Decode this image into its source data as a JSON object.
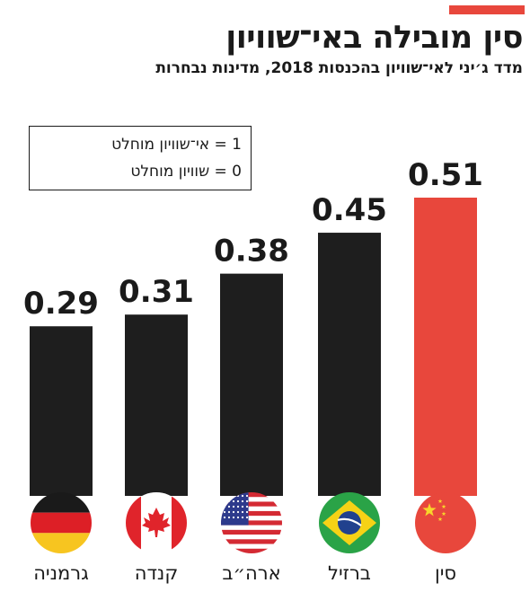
{
  "title": "סין מובילה באי־שוויון",
  "subtitle": "מדד ג׳יני לאי־שוויון בהכנסות 2018, מדינות נבחרות",
  "legend": {
    "one": "1 = אי־שוויון מוחלט",
    "zero": "0 = שוויון מוחלט"
  },
  "colors": {
    "bar": "#1e1e1e",
    "highlight": "#e8473c",
    "text": "#1a1a1a"
  },
  "chart_data": {
    "type": "bar",
    "categories": [
      "גרמניה",
      "קנדה",
      "ארה״ב",
      "ברזיל",
      "סין"
    ],
    "values": [
      0.29,
      0.31,
      0.38,
      0.45,
      0.51
    ],
    "value_labels": [
      "0.29",
      "0.31",
      "0.38",
      "0.45",
      "0.51"
    ],
    "flags": [
      "germany-flag-icon",
      "canada-flag-icon",
      "usa-flag-icon",
      "brazil-flag-icon",
      "china-flag-icon"
    ],
    "highlight_index": 4,
    "title": "סין מובילה באי־שוויון",
    "xlabel": "",
    "ylabel": "",
    "ylim": [
      0,
      0.51
    ],
    "grid": false,
    "legend": "top-left"
  }
}
